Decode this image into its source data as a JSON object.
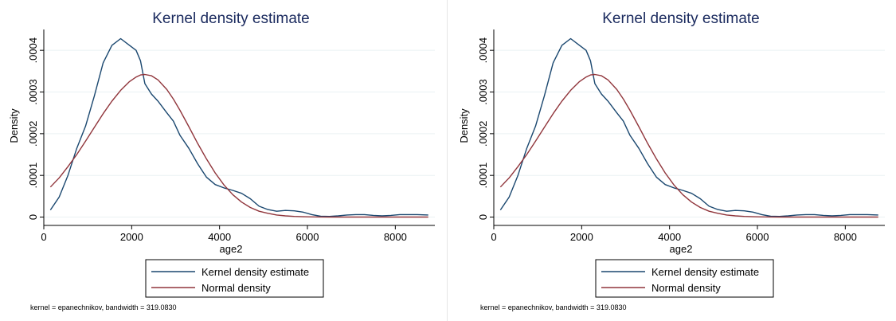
{
  "chart_data": [
    {
      "type": "line",
      "title": "Kernel density estimate",
      "xlabel": "age2",
      "ylabel": "Density",
      "xlim": [
        0,
        8900
      ],
      "ylim": [
        -2e-05,
        0.00045
      ],
      "xticks": [
        0,
        2000,
        4000,
        6000,
        8000
      ],
      "xtick_labels": [
        "0",
        "2000",
        "4000",
        "6000",
        "8000"
      ],
      "yticks": [
        0,
        0.0001,
        0.0002,
        0.0003,
        0.0004
      ],
      "ytick_labels": [
        "0",
        ".0001",
        ".0002",
        ".0003",
        ".0004"
      ],
      "grid": true,
      "legend_position": "bottom",
      "note": "kernel = epanechnikov, bandwidth = 319.0830",
      "series": [
        {
          "name": "Kernel density estimate",
          "color": "#1a476f",
          "x": [
            150,
            350,
            550,
            750,
            950,
            1150,
            1350,
            1550,
            1750,
            1950,
            2100,
            2200,
            2300,
            2450,
            2600,
            2800,
            2950,
            3100,
            3300,
            3500,
            3700,
            3900,
            4100,
            4300,
            4500,
            4700,
            4900,
            5100,
            5300,
            5500,
            5700,
            5900,
            6100,
            6300,
            6500,
            6700,
            6900,
            7100,
            7300,
            7500,
            7700,
            7900,
            8100,
            8300,
            8500,
            8750
          ],
          "y": [
            1.7e-05,
            4.8e-05,
            0.0001,
            0.000165,
            0.000218,
            0.00029,
            0.00037,
            0.000412,
            0.000428,
            0.000412,
            0.0004,
            0.000375,
            0.00032,
            0.000295,
            0.000278,
            0.00025,
            0.00023,
            0.000196,
            0.000165,
            0.000128,
            9.6e-05,
            7.8e-05,
            7e-05,
            6.4e-05,
            5.7e-05,
            4.4e-05,
            2.6e-05,
            1.8e-05,
            1.4e-05,
            1.6e-05,
            1.5e-05,
            1.2e-05,
            6e-06,
            2e-06,
            1.5e-06,
            3e-06,
            5e-06,
            6e-06,
            6e-06,
            4e-06,
            3e-06,
            4e-06,
            6e-06,
            6e-06,
            6e-06,
            5e-06
          ]
        },
        {
          "name": "Normal density",
          "color": "#90353b",
          "x": [
            150,
            350,
            550,
            750,
            950,
            1150,
            1350,
            1550,
            1750,
            1950,
            2100,
            2200,
            2300,
            2450,
            2600,
            2800,
            2950,
            3100,
            3300,
            3500,
            3700,
            3900,
            4100,
            4300,
            4500,
            4700,
            4900,
            5100,
            5300,
            5500,
            5700,
            5900,
            6100,
            6300,
            6500,
            6700,
            6900,
            7100,
            7300,
            7500,
            7700,
            7900,
            8100,
            8300,
            8500,
            8750
          ],
          "y": [
            7.2e-05,
            9.4e-05,
            0.000121,
            0.00015,
            0.000182,
            0.000215,
            0.000248,
            0.000278,
            0.000304,
            0.000325,
            0.000336,
            0.000341,
            0.000342,
            0.000339,
            0.000329,
            0.000306,
            0.000283,
            0.000256,
            0.000217,
            0.000177,
            0.00014,
            0.000106,
            7.7e-05,
            5.4e-05,
            3.6e-05,
            2.3e-05,
            1.4e-05,
            9e-06,
            5e-06,
            3e-06,
            1.5e-06,
            8e-07,
            4e-07,
            2e-07,
            1e-07,
            0,
            0,
            0,
            0,
            0,
            0,
            0,
            0,
            0,
            0,
            0
          ]
        }
      ]
    },
    {
      "type": "line",
      "title": "Kernel density estimate",
      "xlabel": "age2",
      "ylabel": "Density",
      "xlim": [
        0,
        8900
      ],
      "ylim": [
        -2e-05,
        0.00045
      ],
      "xticks": [
        0,
        2000,
        4000,
        6000,
        8000
      ],
      "xtick_labels": [
        "0",
        "2000",
        "4000",
        "6000",
        "8000"
      ],
      "yticks": [
        0,
        0.0001,
        0.0002,
        0.0003,
        0.0004
      ],
      "ytick_labels": [
        "0",
        ".0001",
        ".0002",
        ".0003",
        ".0004"
      ],
      "grid": true,
      "legend_position": "bottom",
      "note": "kernel = epanechnikov, bandwidth = 319.0830",
      "series": [
        {
          "name": "Kernel density estimate",
          "color": "#1a476f",
          "x": [
            150,
            350,
            550,
            750,
            950,
            1150,
            1350,
            1550,
            1750,
            1950,
            2100,
            2200,
            2300,
            2450,
            2600,
            2800,
            2950,
            3100,
            3300,
            3500,
            3700,
            3900,
            4100,
            4300,
            4500,
            4700,
            4900,
            5100,
            5300,
            5500,
            5700,
            5900,
            6100,
            6300,
            6500,
            6700,
            6900,
            7100,
            7300,
            7500,
            7700,
            7900,
            8100,
            8300,
            8500,
            8750
          ],
          "y": [
            1.7e-05,
            4.8e-05,
            0.0001,
            0.000165,
            0.000218,
            0.00029,
            0.00037,
            0.000412,
            0.000428,
            0.000412,
            0.0004,
            0.000375,
            0.00032,
            0.000295,
            0.000278,
            0.00025,
            0.00023,
            0.000196,
            0.000165,
            0.000128,
            9.6e-05,
            7.8e-05,
            7e-05,
            6.4e-05,
            5.7e-05,
            4.4e-05,
            2.6e-05,
            1.8e-05,
            1.4e-05,
            1.6e-05,
            1.5e-05,
            1.2e-05,
            6e-06,
            2e-06,
            1.5e-06,
            3e-06,
            5e-06,
            6e-06,
            6e-06,
            4e-06,
            3e-06,
            4e-06,
            6e-06,
            6e-06,
            6e-06,
            5e-06
          ]
        },
        {
          "name": "Normal density",
          "color": "#90353b",
          "x": [
            150,
            350,
            550,
            750,
            950,
            1150,
            1350,
            1550,
            1750,
            1950,
            2100,
            2200,
            2300,
            2450,
            2600,
            2800,
            2950,
            3100,
            3300,
            3500,
            3700,
            3900,
            4100,
            4300,
            4500,
            4700,
            4900,
            5100,
            5300,
            5500,
            5700,
            5900,
            6100,
            6300,
            6500,
            6700,
            6900,
            7100,
            7300,
            7500,
            7700,
            7900,
            8100,
            8300,
            8500,
            8750
          ],
          "y": [
            7.2e-05,
            9.4e-05,
            0.000121,
            0.00015,
            0.000182,
            0.000215,
            0.000248,
            0.000278,
            0.000304,
            0.000325,
            0.000336,
            0.000341,
            0.000342,
            0.000339,
            0.000329,
            0.000306,
            0.000283,
            0.000256,
            0.000217,
            0.000177,
            0.00014,
            0.000106,
            7.7e-05,
            5.4e-05,
            3.6e-05,
            2.3e-05,
            1.4e-05,
            9e-06,
            5e-06,
            3e-06,
            1.5e-06,
            8e-07,
            4e-07,
            2e-07,
            1e-07,
            0,
            0,
            0,
            0,
            0,
            0,
            0,
            0,
            0,
            0,
            0
          ]
        }
      ]
    }
  ]
}
